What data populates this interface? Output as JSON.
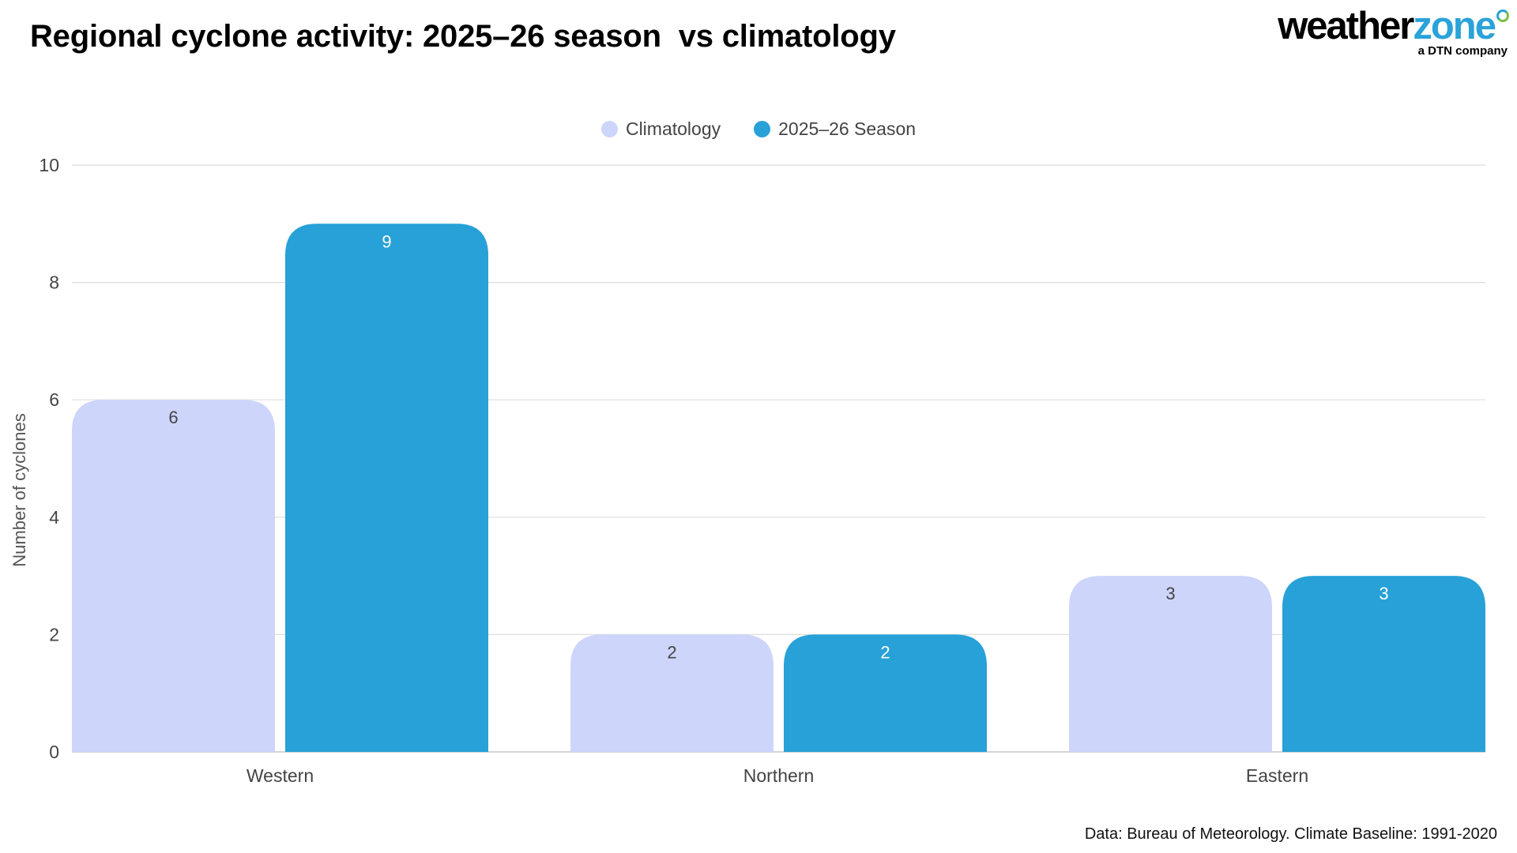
{
  "title": "Regional cyclone activity: 2025–26 season  vs climatology",
  "logo": {
    "word_part1": "weather",
    "word_part2": "zone",
    "tagline": "a DTN company"
  },
  "source": "Data: Bureau of Meteorology. Climate Baseline: 1991-2020",
  "chart_data": {
    "type": "bar",
    "title": "Regional cyclone activity: 2025–26 season  vs climatology",
    "xlabel": "",
    "ylabel": "Number of cyclones",
    "categories": [
      "Western",
      "Northern",
      "Eastern"
    ],
    "series": [
      {
        "name": "Climatology",
        "values": [
          6,
          2,
          3
        ],
        "color": "#cdd5fb",
        "label_color": "#444444"
      },
      {
        "name": "2025–26 Season",
        "values": [
          9,
          2,
          3
        ],
        "color": "#27a1d7",
        "label_color": "#ffffff"
      }
    ],
    "ylim": [
      0,
      10
    ],
    "yticks": [
      0,
      2,
      4,
      6,
      8,
      10
    ],
    "grid": true,
    "legend": "top-center"
  }
}
